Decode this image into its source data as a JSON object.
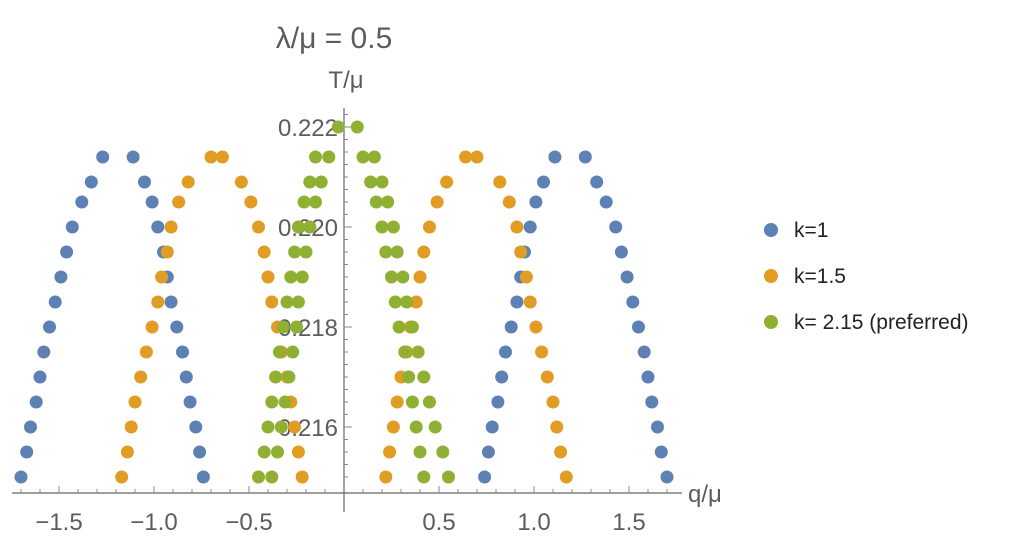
{
  "chart_data": {
    "type": "scatter",
    "title": "λ/μ = 0.5",
    "xlabel": "q/μ",
    "ylabel": "T/μ",
    "xlim": [
      -1.75,
      1.75
    ],
    "ylim": [
      0.2148,
      0.2225
    ],
    "xticks": [
      -1.5,
      -1.0,
      -0.5,
      0.5,
      1.0,
      1.5
    ],
    "xtick_labels": [
      "−1.5",
      "−1.0",
      "−0.5",
      "0.5",
      "1.0",
      "1.5"
    ],
    "yticks": [
      0.216,
      0.218,
      0.22,
      0.222
    ],
    "ytick_labels": [
      "0.216",
      "0.218",
      "0.220",
      "0.222"
    ],
    "legend_position": "right",
    "grid": false,
    "series": [
      {
        "name": "k=1",
        "color": "#5e81b5",
        "points": [
          [
            -1.27,
            0.2214
          ],
          [
            -1.11,
            0.2214
          ],
          [
            -1.33,
            0.2209
          ],
          [
            -1.05,
            0.2209
          ],
          [
            -1.38,
            0.2205
          ],
          [
            -1.01,
            0.2205
          ],
          [
            -1.43,
            0.22
          ],
          [
            -0.98,
            0.22
          ],
          [
            -1.46,
            0.2195
          ],
          [
            -0.95,
            0.2195
          ],
          [
            -1.49,
            0.219
          ],
          [
            -0.93,
            0.219
          ],
          [
            -1.52,
            0.2185
          ],
          [
            -0.91,
            0.2185
          ],
          [
            -1.55,
            0.218
          ],
          [
            -0.88,
            0.218
          ],
          [
            -1.58,
            0.2175
          ],
          [
            -0.85,
            0.2175
          ],
          [
            -1.6,
            0.217
          ],
          [
            -0.83,
            0.217
          ],
          [
            -1.62,
            0.2165
          ],
          [
            -0.81,
            0.2165
          ],
          [
            -1.65,
            0.216
          ],
          [
            -0.78,
            0.216
          ],
          [
            -1.67,
            0.2155
          ],
          [
            -0.76,
            0.2155
          ],
          [
            -1.7,
            0.215
          ],
          [
            -0.74,
            0.215
          ],
          [
            1.11,
            0.2214
          ],
          [
            1.27,
            0.2214
          ],
          [
            1.05,
            0.2209
          ],
          [
            1.33,
            0.2209
          ],
          [
            1.01,
            0.2205
          ],
          [
            1.38,
            0.2205
          ],
          [
            0.98,
            0.22
          ],
          [
            1.43,
            0.22
          ],
          [
            0.95,
            0.2195
          ],
          [
            1.46,
            0.2195
          ],
          [
            0.93,
            0.219
          ],
          [
            1.49,
            0.219
          ],
          [
            0.91,
            0.2185
          ],
          [
            1.52,
            0.2185
          ],
          [
            0.88,
            0.218
          ],
          [
            1.55,
            0.218
          ],
          [
            0.85,
            0.2175
          ],
          [
            1.58,
            0.2175
          ],
          [
            0.83,
            0.217
          ],
          [
            1.6,
            0.217
          ],
          [
            0.81,
            0.2165
          ],
          [
            1.62,
            0.2165
          ],
          [
            0.78,
            0.216
          ],
          [
            1.65,
            0.216
          ],
          [
            0.76,
            0.2155
          ],
          [
            1.67,
            0.2155
          ],
          [
            0.74,
            0.215
          ],
          [
            1.7,
            0.215
          ]
        ]
      },
      {
        "name": "k=1.5",
        "color": "#e19c24",
        "points": [
          [
            -0.7,
            0.2214
          ],
          [
            -0.64,
            0.2214
          ],
          [
            -0.82,
            0.2209
          ],
          [
            -0.54,
            0.2209
          ],
          [
            -0.87,
            0.2205
          ],
          [
            -0.49,
            0.2205
          ],
          [
            -0.91,
            0.22
          ],
          [
            -0.45,
            0.22
          ],
          [
            -0.93,
            0.2195
          ],
          [
            -0.42,
            0.2195
          ],
          [
            -0.96,
            0.219
          ],
          [
            -0.4,
            0.219
          ],
          [
            -0.98,
            0.2185
          ],
          [
            -0.38,
            0.2185
          ],
          [
            -1.01,
            0.218
          ],
          [
            -0.35,
            0.218
          ],
          [
            -1.04,
            0.2175
          ],
          [
            -0.33,
            0.2175
          ],
          [
            -1.07,
            0.217
          ],
          [
            -0.3,
            0.217
          ],
          [
            -1.1,
            0.2165
          ],
          [
            -0.28,
            0.2165
          ],
          [
            -1.12,
            0.216
          ],
          [
            -0.26,
            0.216
          ],
          [
            -1.14,
            0.2155
          ],
          [
            -0.24,
            0.2155
          ],
          [
            -1.17,
            0.215
          ],
          [
            -0.22,
            0.215
          ],
          [
            0.64,
            0.2214
          ],
          [
            0.7,
            0.2214
          ],
          [
            0.54,
            0.2209
          ],
          [
            0.82,
            0.2209
          ],
          [
            0.49,
            0.2205
          ],
          [
            0.87,
            0.2205
          ],
          [
            0.45,
            0.22
          ],
          [
            0.91,
            0.22
          ],
          [
            0.42,
            0.2195
          ],
          [
            0.93,
            0.2195
          ],
          [
            0.4,
            0.219
          ],
          [
            0.96,
            0.219
          ],
          [
            0.38,
            0.2185
          ],
          [
            0.98,
            0.2185
          ],
          [
            0.35,
            0.218
          ],
          [
            1.01,
            0.218
          ],
          [
            0.33,
            0.2175
          ],
          [
            1.04,
            0.2175
          ],
          [
            0.3,
            0.217
          ],
          [
            1.07,
            0.217
          ],
          [
            0.28,
            0.2165
          ],
          [
            1.1,
            0.2165
          ],
          [
            0.26,
            0.216
          ],
          [
            1.12,
            0.216
          ],
          [
            0.24,
            0.2155
          ],
          [
            1.14,
            0.2155
          ],
          [
            0.22,
            0.215
          ],
          [
            1.17,
            0.215
          ]
        ]
      },
      {
        "name": "k= 2.15 (preferred)",
        "color": "#8fb032",
        "points": [
          [
            -0.03,
            0.222
          ],
          [
            0.07,
            0.222
          ],
          [
            -0.15,
            0.2214
          ],
          [
            -0.08,
            0.2214
          ],
          [
            0.1,
            0.2214
          ],
          [
            0.16,
            0.2214
          ],
          [
            -0.18,
            0.2209
          ],
          [
            -0.12,
            0.2209
          ],
          [
            0.14,
            0.2209
          ],
          [
            0.2,
            0.2209
          ],
          [
            -0.21,
            0.2205
          ],
          [
            -0.15,
            0.2205
          ],
          [
            0.17,
            0.2205
          ],
          [
            0.23,
            0.2205
          ],
          [
            -0.24,
            0.22
          ],
          [
            -0.18,
            0.22
          ],
          [
            0.2,
            0.22
          ],
          [
            0.26,
            0.22
          ],
          [
            -0.26,
            0.2195
          ],
          [
            -0.2,
            0.2195
          ],
          [
            0.22,
            0.2195
          ],
          [
            0.28,
            0.2195
          ],
          [
            -0.28,
            0.219
          ],
          [
            -0.22,
            0.219
          ],
          [
            0.25,
            0.219
          ],
          [
            0.31,
            0.219
          ],
          [
            -0.3,
            0.2185
          ],
          [
            -0.24,
            0.2185
          ],
          [
            0.27,
            0.2185
          ],
          [
            0.33,
            0.2185
          ],
          [
            -0.32,
            0.218
          ],
          [
            -0.25,
            0.218
          ],
          [
            0.29,
            0.218
          ],
          [
            0.36,
            0.218
          ],
          [
            -0.34,
            0.2175
          ],
          [
            -0.27,
            0.2175
          ],
          [
            0.32,
            0.2175
          ],
          [
            0.39,
            0.2175
          ],
          [
            -0.36,
            0.217
          ],
          [
            -0.29,
            0.217
          ],
          [
            0.34,
            0.217
          ],
          [
            0.42,
            0.217
          ],
          [
            -0.38,
            0.2165
          ],
          [
            -0.31,
            0.2165
          ],
          [
            0.36,
            0.2165
          ],
          [
            0.45,
            0.2165
          ],
          [
            -0.4,
            0.216
          ],
          [
            -0.33,
            0.216
          ],
          [
            0.38,
            0.216
          ],
          [
            0.48,
            0.216
          ],
          [
            -0.42,
            0.2155
          ],
          [
            -0.35,
            0.2155
          ],
          [
            0.4,
            0.2155
          ],
          [
            0.52,
            0.2155
          ],
          [
            -0.45,
            0.215
          ],
          [
            -0.38,
            0.215
          ],
          [
            0.42,
            0.215
          ],
          [
            0.55,
            0.215
          ]
        ]
      }
    ]
  }
}
